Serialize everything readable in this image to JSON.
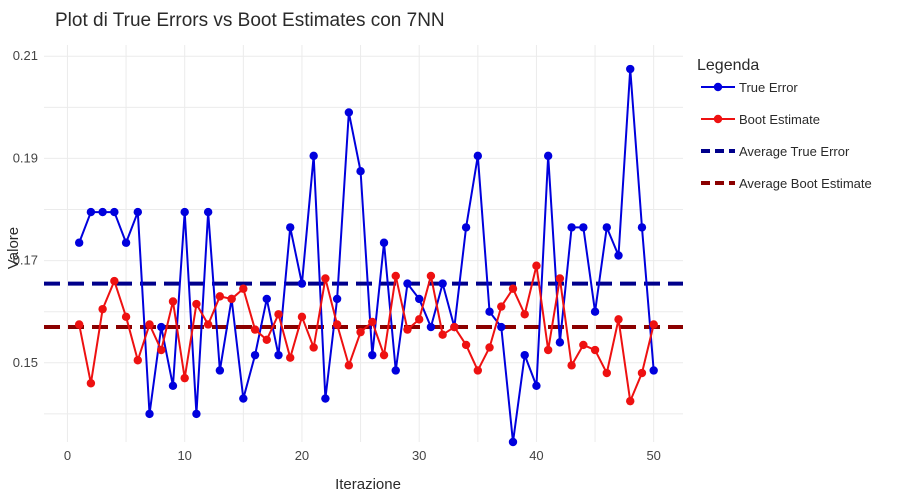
{
  "chart_data": {
    "type": "line",
    "title": "Plot di True Errors vs Boot Estimates con 7NN",
    "xlabel": "Iterazione",
    "ylabel": "Valore",
    "xlim": [
      -2,
      52.5
    ],
    "ylim": [
      0.1345,
      0.2122
    ],
    "x_ticks": [
      0,
      10,
      20,
      30,
      40,
      50
    ],
    "y_ticks": [
      0.15,
      0.17,
      0.19,
      0.21
    ],
    "x_tick_labels": [
      "0",
      "10",
      "20",
      "30",
      "40",
      "50"
    ],
    "y_tick_labels": [
      "0.15",
      "0.17",
      "0.19",
      "0.21"
    ],
    "grid": true,
    "legend_title": "Legenda",
    "legend_position": "right",
    "x": [
      1,
      2,
      3,
      4,
      5,
      6,
      7,
      8,
      9,
      10,
      11,
      12,
      13,
      14,
      15,
      16,
      17,
      18,
      19,
      20,
      21,
      22,
      23,
      24,
      25,
      26,
      27,
      28,
      29,
      30,
      31,
      32,
      33,
      34,
      35,
      36,
      37,
      38,
      39,
      40,
      41,
      42,
      43,
      44,
      45,
      46,
      47,
      48,
      49,
      50
    ],
    "series": [
      {
        "name": "True Error",
        "color": "#0000dd",
        "values": [
          0.1735,
          0.1795,
          0.1795,
          0.1795,
          0.1735,
          0.1795,
          0.14,
          0.157,
          0.1455,
          0.1795,
          0.14,
          0.1795,
          0.1485,
          0.1625,
          0.143,
          0.1515,
          0.1625,
          0.1515,
          0.1765,
          0.1655,
          0.1905,
          0.143,
          0.1625,
          0.199,
          0.1875,
          0.1515,
          0.1735,
          0.1485,
          0.1655,
          0.1625,
          0.157,
          0.1655,
          0.157,
          0.1765,
          0.1905,
          0.16,
          0.157,
          0.1345,
          0.1515,
          0.1455,
          0.1905,
          0.154,
          0.1765,
          0.1765,
          0.16,
          0.1765,
          0.171,
          0.2075,
          0.1765,
          0.1485
        ]
      },
      {
        "name": "Boot Estimate",
        "color": "#ee1111",
        "values": [
          0.1575,
          0.146,
          0.1605,
          0.166,
          0.159,
          0.1505,
          0.1575,
          0.1525,
          0.162,
          0.147,
          0.1615,
          0.1575,
          0.163,
          0.1625,
          0.1645,
          0.1565,
          0.1545,
          0.1595,
          0.151,
          0.159,
          0.153,
          0.1665,
          0.1575,
          0.1495,
          0.156,
          0.158,
          0.1515,
          0.167,
          0.1565,
          0.1585,
          0.167,
          0.1555,
          0.157,
          0.1535,
          0.1485,
          0.153,
          0.161,
          0.1645,
          0.1595,
          0.169,
          0.1525,
          0.1665,
          0.1495,
          0.1535,
          0.1525,
          0.148,
          0.1585,
          0.1425,
          0.148,
          0.1575
        ]
      },
      {
        "name": "Average True Error",
        "color": "#00008b",
        "style": "dashed",
        "value": 0.1655
      },
      {
        "name": "Average Boot Estimate",
        "color": "#8b0000",
        "style": "dashed",
        "value": 0.157
      }
    ]
  }
}
